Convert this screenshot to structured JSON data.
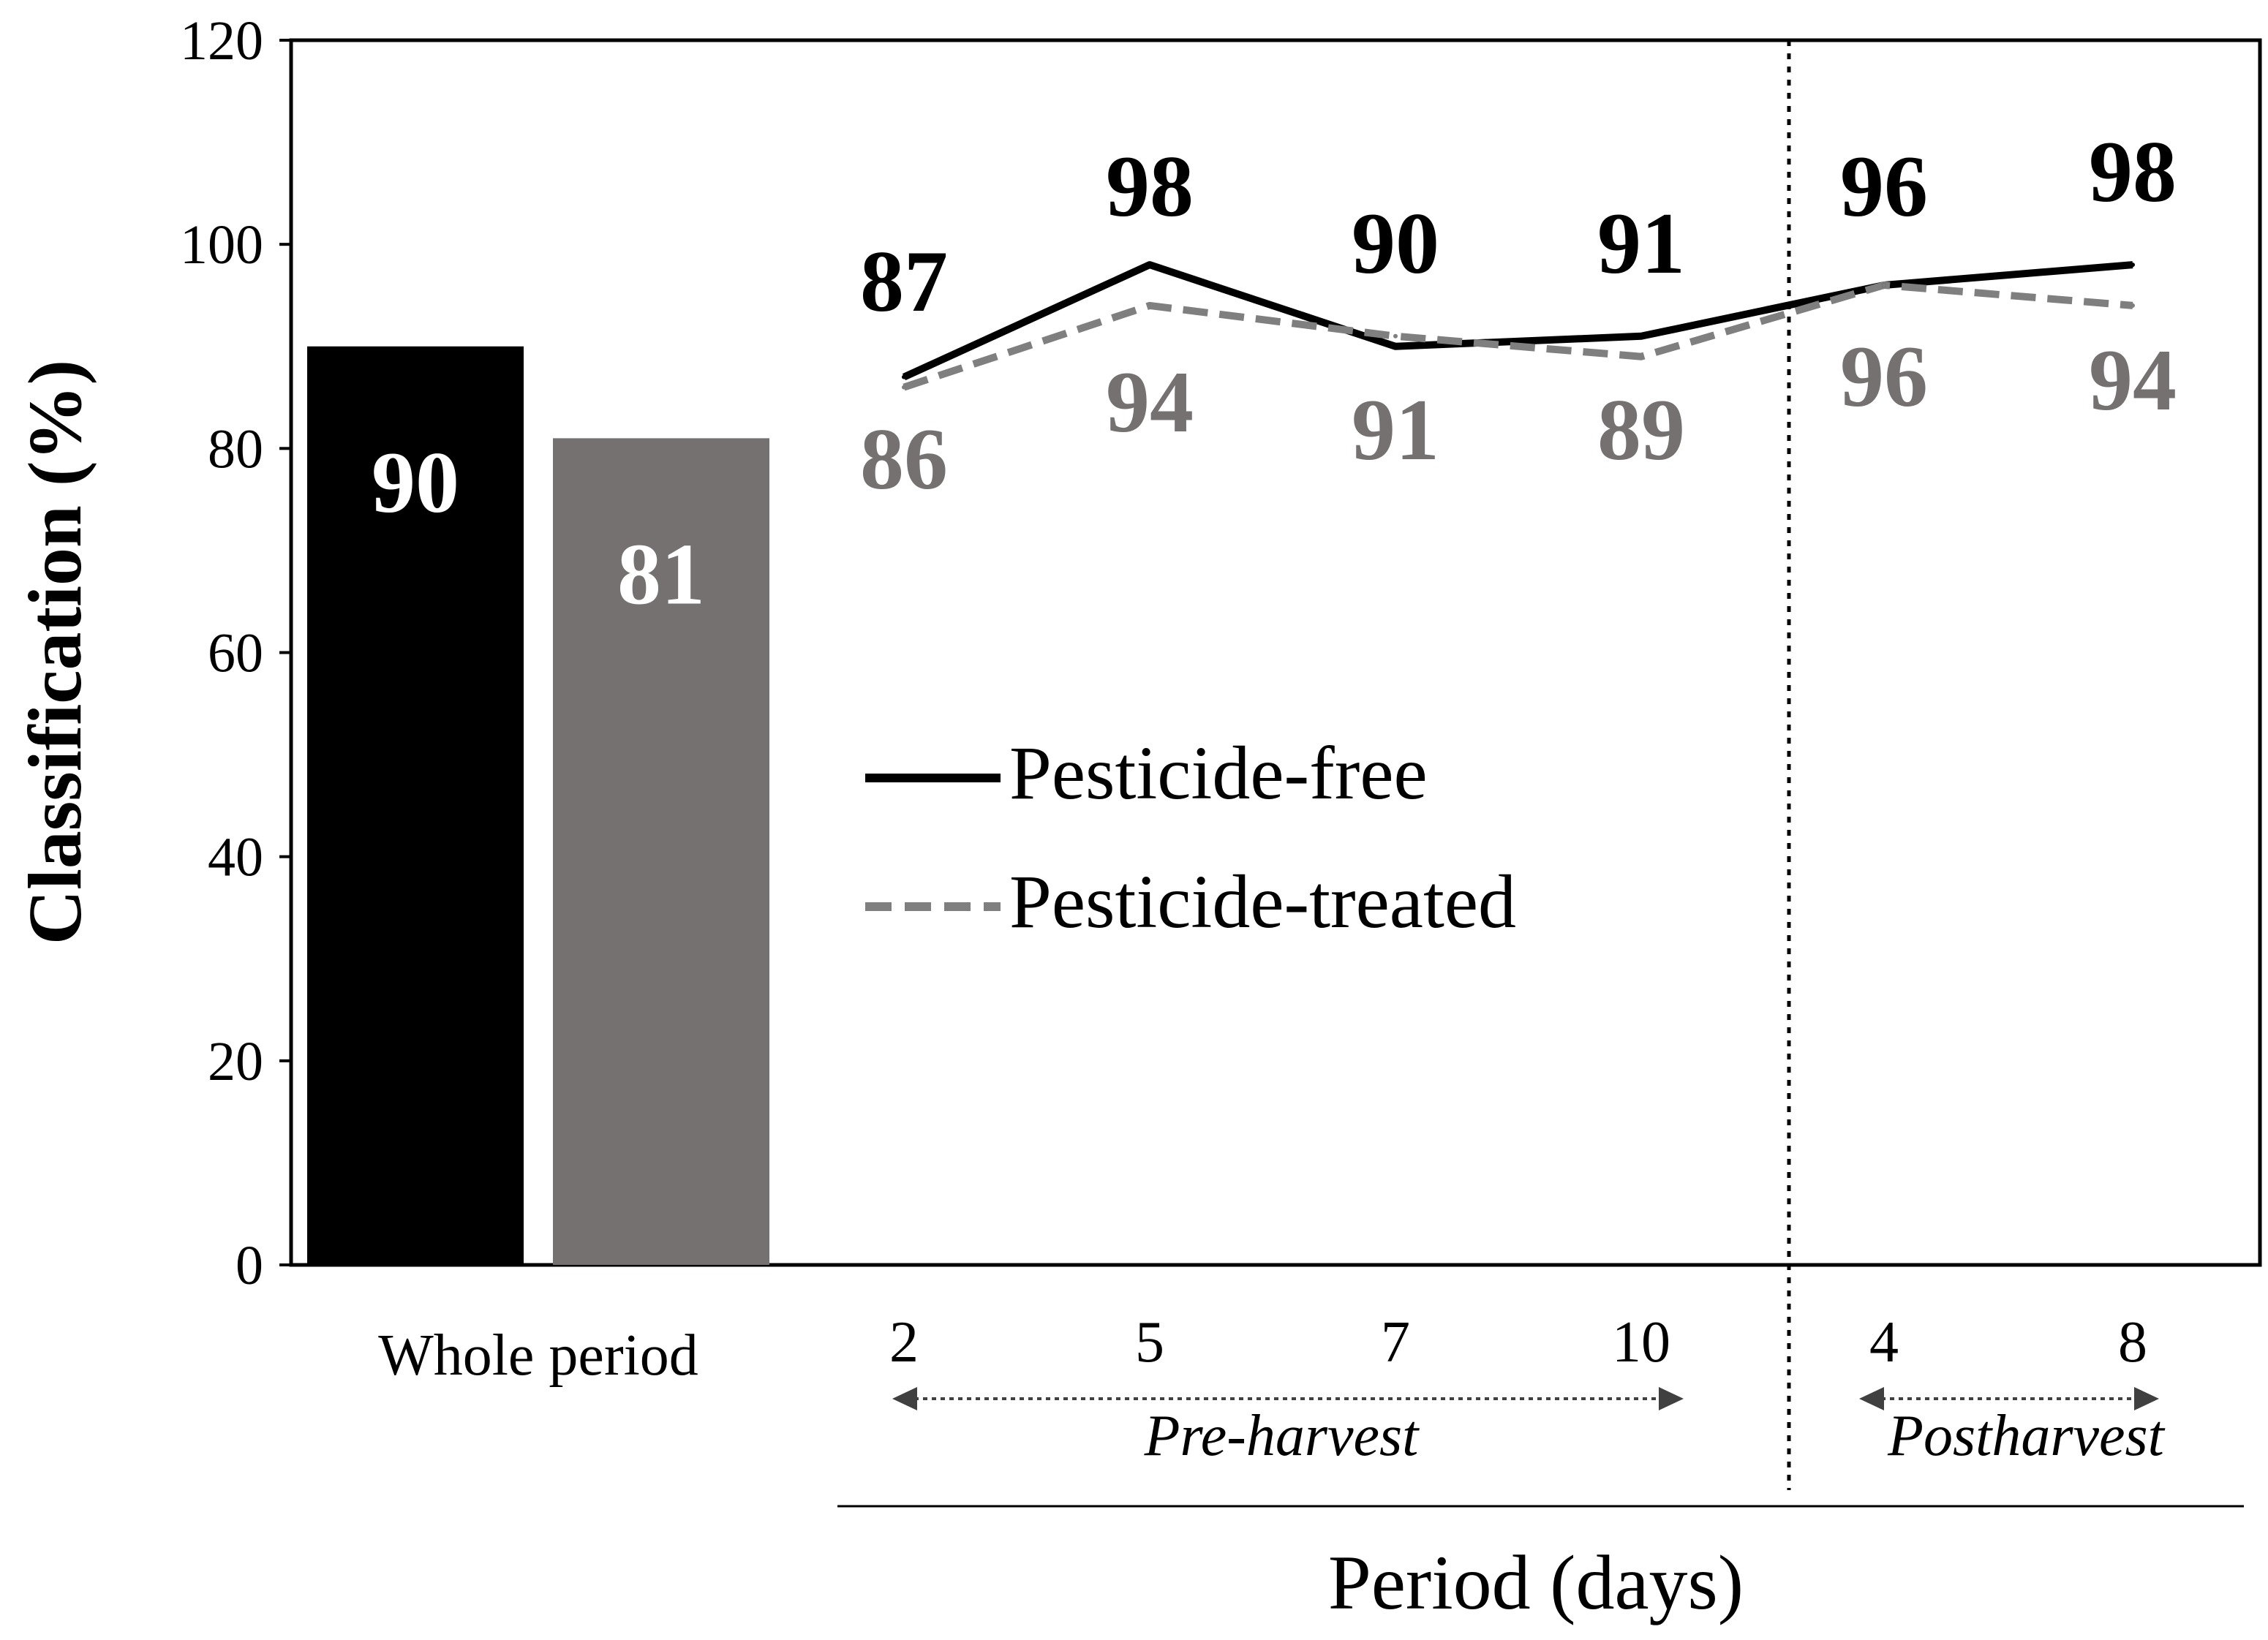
{
  "colors": {
    "free": "#000000",
    "treated": "#767171",
    "treated_line": "#7f7f7f",
    "axis": "#000000"
  },
  "chart_data": {
    "type": "bar+line",
    "ylabel": "Classification (%)",
    "xlabel": "Period (days)",
    "ylim": [
      0,
      120
    ],
    "yticks": [
      0,
      20,
      40,
      60,
      80,
      100,
      120
    ],
    "grid": false,
    "whole_period": {
      "label": "Whole period",
      "bars": [
        {
          "series": "Pesticide-free",
          "value": 90,
          "label": "90"
        },
        {
          "series": "Pesticide-treated",
          "value": 81,
          "label": "81"
        }
      ]
    },
    "categories": [
      "2",
      "5",
      "7",
      "10",
      "4",
      "8"
    ],
    "series": [
      {
        "name": "Pesticide-free",
        "style": "solid",
        "values": [
          87,
          98,
          90,
          91,
          96,
          98
        ],
        "labels": [
          "87",
          "98",
          "90",
          "91",
          "96",
          "98"
        ]
      },
      {
        "name": "Pesticide-treated",
        "style": "dashed",
        "values": [
          86,
          94,
          91,
          89,
          96,
          94
        ],
        "labels": [
          "86",
          "94",
          "91",
          "89",
          "96",
          "94"
        ]
      }
    ],
    "phases": [
      {
        "name": "Pre-harvest",
        "categories": [
          "2",
          "5",
          "7",
          "10"
        ]
      },
      {
        "name": "Postharvest",
        "categories": [
          "4",
          "8"
        ]
      }
    ],
    "legend": {
      "position": "center-left",
      "entries": [
        "Pesticide-free",
        "Pesticide-treated"
      ]
    }
  }
}
